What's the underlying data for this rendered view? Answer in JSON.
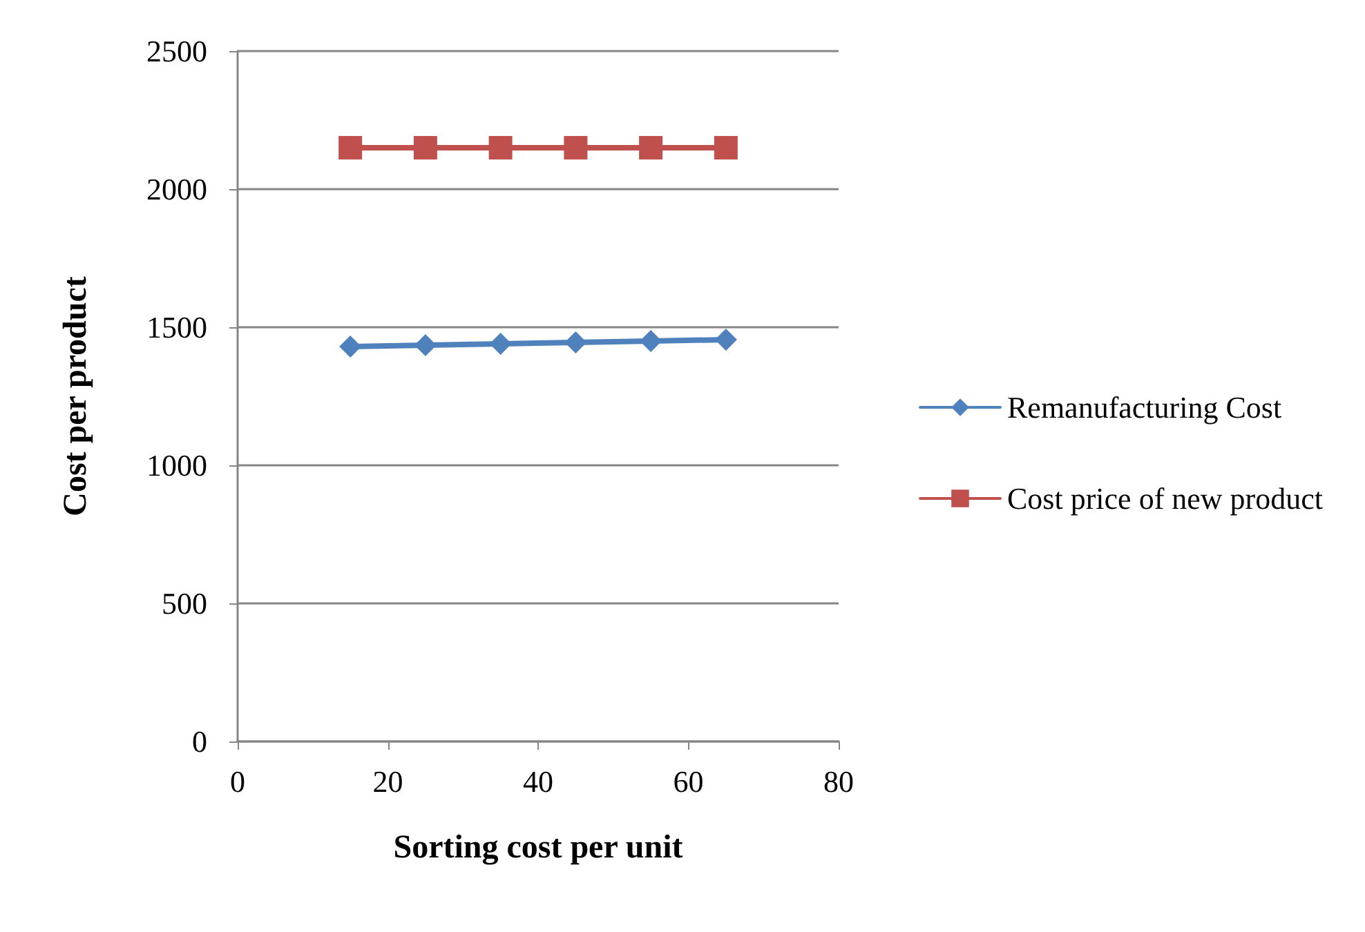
{
  "chart_data": {
    "type": "line",
    "xlabel": "Sorting cost per unit",
    "ylabel": "Cost per product",
    "x": [
      15,
      25,
      35,
      45,
      55,
      65
    ],
    "series": [
      {
        "name": "Remanufacturing Cost",
        "color": "#4f81bd",
        "marker": "diamond",
        "values": [
          1430,
          1435,
          1440,
          1445,
          1450,
          1455
        ]
      },
      {
        "name": "Cost price of new product",
        "color": "#c0504d",
        "marker": "square",
        "values": [
          2150,
          2150,
          2150,
          2150,
          2150,
          2150
        ]
      }
    ],
    "xlim": [
      0,
      80
    ],
    "xticks": [
      0,
      20,
      40,
      60,
      80
    ],
    "ylim": [
      0,
      2500
    ],
    "yticks": [
      0,
      500,
      1000,
      1500,
      2000,
      2500
    ],
    "grid": "y",
    "legend": "right",
    "line_style": "solid"
  }
}
